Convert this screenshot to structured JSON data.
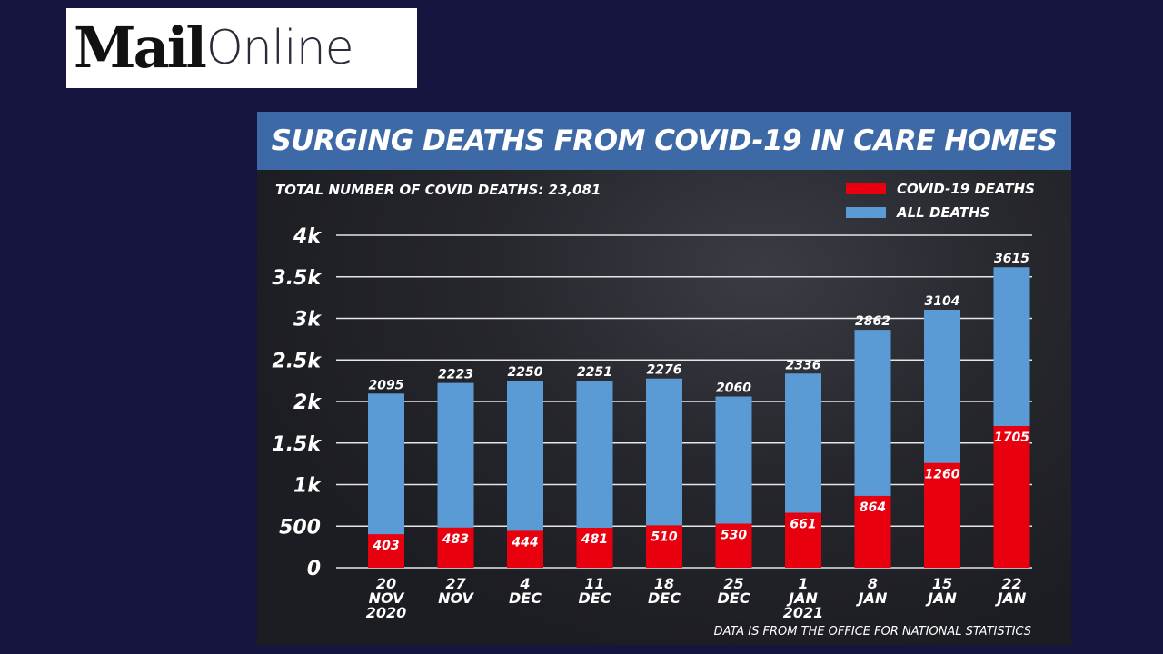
{
  "logo": {
    "bold": "Mail",
    "light": "Online"
  },
  "colors": {
    "background": "#15153f",
    "title_bar": "#3d6aa6",
    "covid": "#e8000f",
    "all": "#5b9bd5"
  },
  "chart_data": {
    "type": "bar",
    "title": "SURGING DEATHS FROM COVID-19 IN CARE HOMES",
    "subtitle": "TOTAL NUMBER OF COVID DEATHS: 23,081",
    "source": "DATA IS FROM THE OFFICE FOR NATIONAL STATISTICS",
    "categories": [
      [
        "20",
        "NOV",
        "2020"
      ],
      [
        "27",
        "NOV"
      ],
      [
        "4",
        "DEC"
      ],
      [
        "11",
        "DEC"
      ],
      [
        "18",
        "DEC"
      ],
      [
        "25",
        "DEC"
      ],
      [
        "1",
        "JAN",
        "2021"
      ],
      [
        "8",
        "JAN"
      ],
      [
        "15",
        "JAN"
      ],
      [
        "22",
        "JAN"
      ]
    ],
    "series": [
      {
        "name": "ALL DEATHS",
        "color": "#5b9bd5",
        "values": [
          2095,
          2223,
          2250,
          2251,
          2276,
          2060,
          2336,
          2862,
          3104,
          3615
        ]
      },
      {
        "name": "COVID-19 DEATHS",
        "color": "#e8000f",
        "values": [
          403,
          483,
          444,
          481,
          510,
          530,
          661,
          864,
          1260,
          1705
        ]
      }
    ],
    "ylim": [
      0,
      4000
    ],
    "yticks": [
      0,
      500,
      1000,
      1500,
      2000,
      2500,
      3000,
      3500,
      4000
    ],
    "ytick_labels": [
      "0",
      "500",
      "1k",
      "1.5k",
      "2k",
      "2.5k",
      "3k",
      "3.5k",
      "4k"
    ],
    "grid": true,
    "legend_position": "top-right"
  }
}
